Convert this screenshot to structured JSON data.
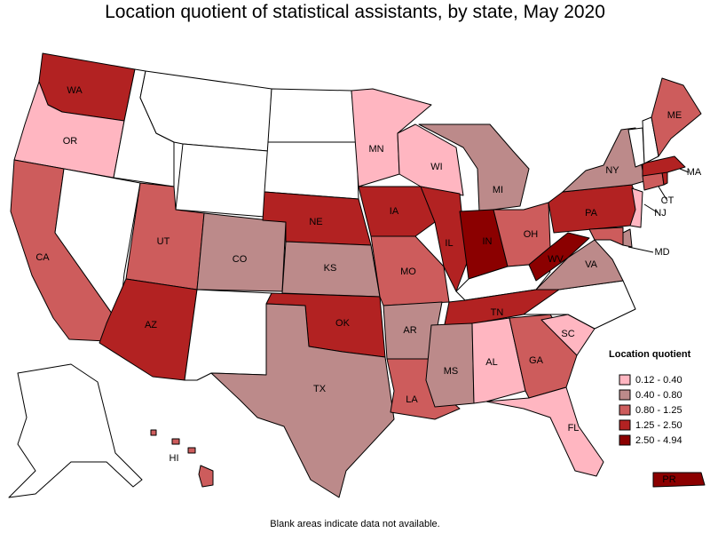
{
  "title": "Location quotient of statistical assistants, by state, May 2020",
  "footnote": "Blank areas indicate data not available.",
  "legend": {
    "title": "Location quotient",
    "items": [
      {
        "label": "0.12 - 0.40",
        "color": "#ffb6c1"
      },
      {
        "label": "0.40 - 0.80",
        "color": "#bc8a8a"
      },
      {
        "label": "0.80 - 1.25",
        "color": "#cd5c5c"
      },
      {
        "label": "1.25 - 2.50",
        "color": "#b22222"
      },
      {
        "label": "2.50 - 4.94",
        "color": "#8b0000"
      }
    ]
  },
  "states": {
    "WA": {
      "label": "WA",
      "class": 3
    },
    "OR": {
      "label": "OR",
      "class": 0
    },
    "CA": {
      "label": "CA",
      "class": 2
    },
    "ID": {
      "label": "",
      "class": -1
    },
    "NV": {
      "label": "",
      "class": -1
    },
    "MT": {
      "label": "",
      "class": -1
    },
    "WY": {
      "label": "",
      "class": -1
    },
    "UT": {
      "label": "UT",
      "class": 2
    },
    "AZ": {
      "label": "AZ",
      "class": 3
    },
    "CO": {
      "label": "CO",
      "class": 1
    },
    "NM": {
      "label": "",
      "class": -1
    },
    "ND": {
      "label": "",
      "class": -1
    },
    "SD": {
      "label": "",
      "class": -1
    },
    "NE": {
      "label": "NE",
      "class": 3
    },
    "KS": {
      "label": "KS",
      "class": 1
    },
    "OK": {
      "label": "OK",
      "class": 3
    },
    "TX": {
      "label": "TX",
      "class": 1
    },
    "MN": {
      "label": "MN",
      "class": 0
    },
    "IA": {
      "label": "IA",
      "class": 3
    },
    "MO": {
      "label": "MO",
      "class": 2
    },
    "AR": {
      "label": "AR",
      "class": 1
    },
    "LA": {
      "label": "LA",
      "class": 2
    },
    "WI": {
      "label": "WI",
      "class": 0
    },
    "IL": {
      "label": "IL",
      "class": 3
    },
    "MI": {
      "label": "MI",
      "class": 1
    },
    "IN": {
      "label": "IN",
      "class": 4
    },
    "OH": {
      "label": "OH",
      "class": 2
    },
    "KY": {
      "label": "",
      "class": -1
    },
    "TN": {
      "label": "TN",
      "class": 3
    },
    "MS": {
      "label": "MS",
      "class": 1
    },
    "AL": {
      "label": "AL",
      "class": 0
    },
    "GA": {
      "label": "GA",
      "class": 2
    },
    "FL": {
      "label": "FL",
      "class": 0
    },
    "SC": {
      "label": "SC",
      "class": 0
    },
    "NC": {
      "label": "",
      "class": -1
    },
    "VA": {
      "label": "VA",
      "class": 1
    },
    "WV": {
      "label": "WV",
      "class": 4
    },
    "PA": {
      "label": "PA",
      "class": 3
    },
    "NY": {
      "label": "NY",
      "class": 1
    },
    "ME": {
      "label": "ME",
      "class": 2
    },
    "VT": {
      "label": "",
      "class": -1
    },
    "NH": {
      "label": "",
      "class": -1
    },
    "MA": {
      "label": "MA",
      "class": 3
    },
    "CT": {
      "label": "CT",
      "class": 2
    },
    "RI": {
      "label": "",
      "class": 3
    },
    "NJ": {
      "label": "NJ",
      "class": 0
    },
    "DE": {
      "label": "",
      "class": 1
    },
    "MD": {
      "label": "MD",
      "class": 2
    },
    "AK": {
      "label": "",
      "class": -1
    },
    "HI": {
      "label": "HI",
      "class": 2
    },
    "PR": {
      "label": "PR",
      "class": 4
    }
  }
}
